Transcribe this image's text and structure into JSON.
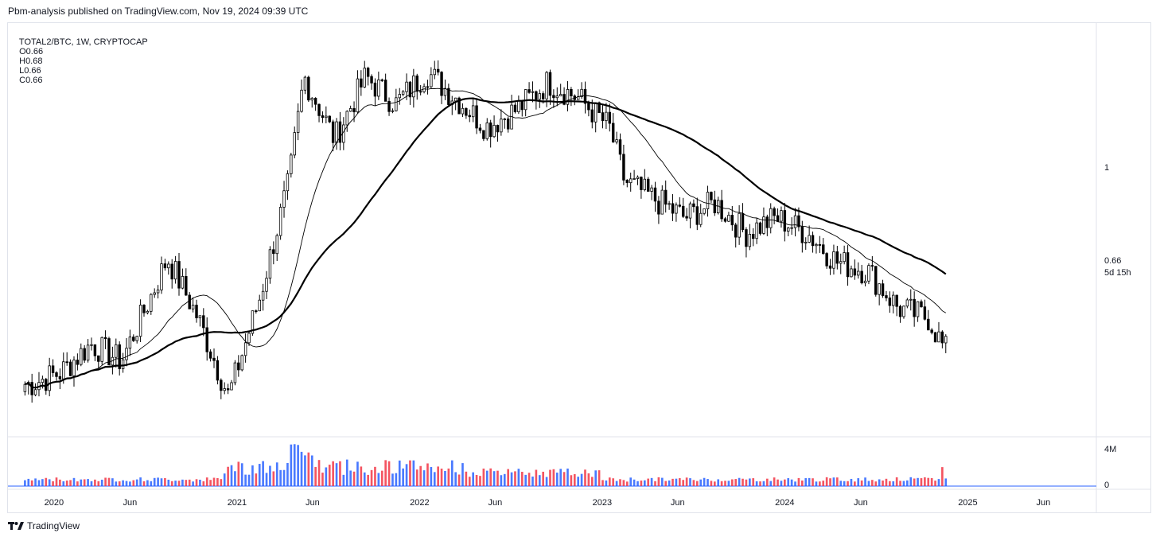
{
  "header": {
    "publisher": "Pbm-analysis published on TradingView.com, Nov 19, 2024 09:39 UTC"
  },
  "legend": {
    "symbol": "TOTAL2/BTC, 1W, CRYPTOCAP",
    "open": "O0.66",
    "high": "H0.68",
    "low": "L0.66",
    "close": "C0.66"
  },
  "price_axis": {
    "level_1": "1",
    "last_price": "0.66",
    "countdown": "5d 15h",
    "volume_top": "4M",
    "volume_zero": "0"
  },
  "footer": {
    "brand": "TradingView"
  },
  "colors": {
    "up": "#2962ff",
    "down": "#f23645",
    "candle": "#000000",
    "ma_fast": "#000000",
    "ma_slow": "#000000"
  },
  "chart_data": {
    "type": "candlestick",
    "scale": "log",
    "x_tick_labels": [
      "2020",
      "Jun",
      "2021",
      "Jun",
      "2022",
      "Jun",
      "2023",
      "Jun",
      "2024",
      "Jun",
      "2025",
      "Jun"
    ],
    "series": [
      {
        "name": "TOTAL2/BTC",
        "type": "candlestick",
        "weekly_close_approx": [
          {
            "date": "2019-11",
            "close": 0.6
          },
          {
            "date": "2020-01",
            "close": 0.62
          },
          {
            "date": "2020-03",
            "close": 0.67
          },
          {
            "date": "2020-05",
            "close": 0.64
          },
          {
            "date": "2020-07",
            "close": 0.77
          },
          {
            "date": "2020-08",
            "close": 0.85
          },
          {
            "date": "2020-10",
            "close": 0.72
          },
          {
            "date": "2020-12",
            "close": 0.58
          },
          {
            "date": "2021-02",
            "close": 0.76
          },
          {
            "date": "2021-04",
            "close": 1.05
          },
          {
            "date": "2021-05",
            "close": 1.4
          },
          {
            "date": "2021-07",
            "close": 1.18
          },
          {
            "date": "2021-09",
            "close": 1.4
          },
          {
            "date": "2021-11",
            "close": 1.3
          },
          {
            "date": "2022-01",
            "close": 1.42
          },
          {
            "date": "2022-03",
            "close": 1.32
          },
          {
            "date": "2022-05",
            "close": 1.22
          },
          {
            "date": "2022-07",
            "close": 1.28
          },
          {
            "date": "2022-09",
            "close": 1.38
          },
          {
            "date": "2022-11",
            "close": 1.32
          },
          {
            "date": "2023-01",
            "close": 1.22
          },
          {
            "date": "2023-02",
            "close": 1.05
          },
          {
            "date": "2023-04",
            "close": 1.0
          },
          {
            "date": "2023-06",
            "close": 0.95
          },
          {
            "date": "2023-08",
            "close": 0.99
          },
          {
            "date": "2023-10",
            "close": 0.91
          },
          {
            "date": "2023-12",
            "close": 0.95
          },
          {
            "date": "2024-02",
            "close": 0.91
          },
          {
            "date": "2024-04",
            "close": 0.84
          },
          {
            "date": "2024-06",
            "close": 0.82
          },
          {
            "date": "2024-08",
            "close": 0.74
          },
          {
            "date": "2024-10",
            "close": 0.72
          },
          {
            "date": "2024-11",
            "close": 0.66
          }
        ]
      },
      {
        "name": "MA fast",
        "type": "line"
      },
      {
        "name": "MA slow",
        "type": "line"
      }
    ],
    "volume": {
      "max_label": "4M",
      "min_label": "0"
    },
    "grid": false,
    "legend_position": "top-left"
  }
}
